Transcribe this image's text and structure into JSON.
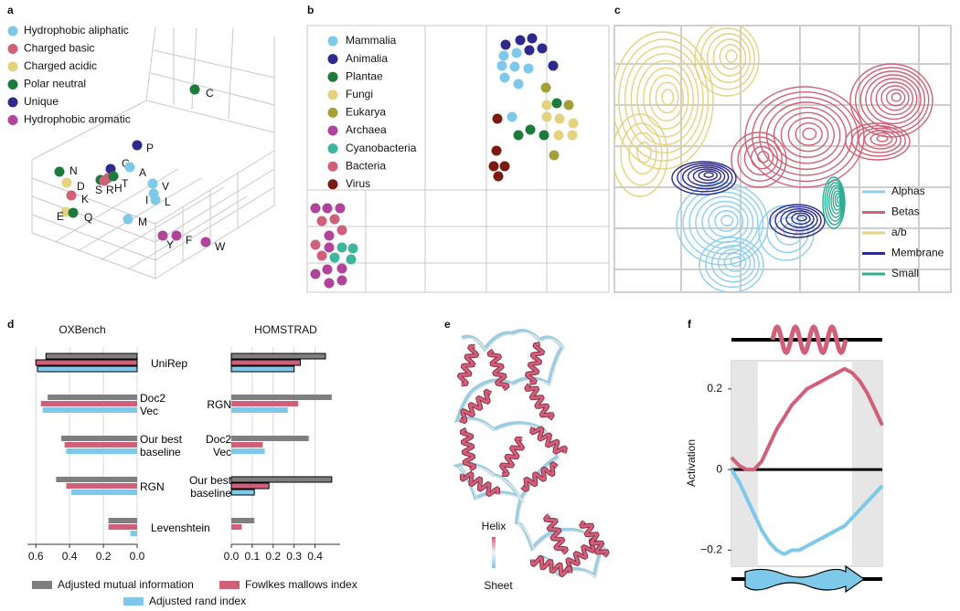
{
  "panel_labels": [
    "a",
    "b",
    "c",
    "d",
    "e",
    "f"
  ],
  "panel_a": {
    "legend": [
      {
        "name": "Hydrophobic aliphatic",
        "color": "#7ec8ea"
      },
      {
        "name": "Charged basic",
        "color": "#d0607a"
      },
      {
        "name": "Charged acidic",
        "color": "#e4d27f"
      },
      {
        "name": "Polar neutral",
        "color": "#1c7a3b"
      },
      {
        "name": "Unique",
        "color": "#2d2a8c"
      },
      {
        "name": "Hydrophobic aromatic",
        "color": "#b0449a"
      }
    ],
    "points": [
      {
        "label": "C",
        "color": "#1c7a3b"
      },
      {
        "label": "P",
        "color": "#2d2a8c"
      },
      {
        "label": "G",
        "color": "#2d2a8c"
      },
      {
        "label": "A",
        "color": "#7ec8ea"
      },
      {
        "label": "N",
        "color": "#1c7a3b"
      },
      {
        "label": "D",
        "color": "#e4d27f"
      },
      {
        "label": "K",
        "color": "#d0607a"
      },
      {
        "label": "E",
        "color": "#e4d27f"
      },
      {
        "label": "Q",
        "color": "#1c7a3b"
      },
      {
        "label": "S",
        "color": "#1c7a3b"
      },
      {
        "label": "R",
        "color": "#d0607a"
      },
      {
        "label": "H",
        "color": "#d0607a"
      },
      {
        "label": "T",
        "color": "#1c7a3b"
      },
      {
        "label": "V",
        "color": "#7ec8ea"
      },
      {
        "label": "I",
        "color": "#7ec8ea"
      },
      {
        "label": "L",
        "color": "#7ec8ea"
      },
      {
        "label": "M",
        "color": "#7ec8ea"
      },
      {
        "label": "Y",
        "color": "#b0449a"
      },
      {
        "label": "F",
        "color": "#b0449a"
      },
      {
        "label": "W",
        "color": "#b0449a"
      }
    ]
  },
  "panel_b": {
    "legend": [
      {
        "name": "Mammalia",
        "color": "#7ec8ea"
      },
      {
        "name": "Animalia",
        "color": "#2d2a8c"
      },
      {
        "name": "Plantae",
        "color": "#1c7a3b"
      },
      {
        "name": "Fungi",
        "color": "#e4d27f"
      },
      {
        "name": "Eukarya",
        "color": "#a3a03a"
      },
      {
        "name": "Archaea",
        "color": "#b0449a"
      },
      {
        "name": "Cyanobacteria",
        "color": "#3fb59e"
      },
      {
        "name": "Bacteria",
        "color": "#d0607a"
      },
      {
        "name": "Virus",
        "color": "#7a1a10"
      }
    ]
  },
  "panel_c": {
    "legend": [
      {
        "name": "Alphas",
        "color": "#8fcfee"
      },
      {
        "name": "Betas",
        "color": "#d0607a"
      },
      {
        "name": "a/b",
        "color": "#e4d27f"
      },
      {
        "name": "Membrane",
        "color": "#2d2a8c"
      },
      {
        "name": "Small",
        "color": "#2fae96"
      }
    ]
  },
  "panel_e": {
    "scale_top": "Helix",
    "scale_bottom": "Sheet"
  },
  "chart_data": [
    {
      "type": "bar",
      "orientation": "horizontal",
      "title": "OXBench",
      "categories": [
        "UniRep",
        "Doc2 Vec",
        "Our best baseline",
        "RGN",
        "Levenshtein"
      ],
      "series": [
        {
          "name": "Adjusted mutual information",
          "color": "#7f7f7f",
          "values": [
            0.54,
            0.53,
            0.45,
            0.48,
            0.17
          ]
        },
        {
          "name": "Fowlkes mallows index",
          "color": "#d0607a",
          "values": [
            0.6,
            0.57,
            0.43,
            0.42,
            0.17
          ]
        },
        {
          "name": "Adjusted rand index",
          "color": "#7ec8ea",
          "values": [
            0.59,
            0.56,
            0.42,
            0.39,
            0.04
          ]
        }
      ],
      "xlim": [
        0.65,
        0
      ],
      "xticks": [
        0.6,
        0.4,
        0.2,
        {
          "value": 0,
          "label": "0.0"
        }
      ],
      "grid": true,
      "outlined": [
        0
      ]
    },
    {
      "type": "bar",
      "orientation": "horizontal",
      "title": "HOMSTRAD",
      "categories": [
        null,
        "RGN",
        "Doc2 Vec",
        "Our best baseline",
        null
      ],
      "series": [
        {
          "color": "#7f7f7f",
          "values": [
            0.45,
            0.48,
            0.37,
            0.48,
            0.11
          ]
        },
        {
          "color": "#d0607a",
          "values": [
            0.33,
            0.32,
            0.15,
            0.18,
            0.05
          ]
        },
        {
          "color": "#7ec8ea",
          "values": [
            0.3,
            0.27,
            0.16,
            0.11,
            0
          ]
        }
      ],
      "xlim": [
        0,
        0.52
      ],
      "xticks": [
        {
          "value": 0,
          "label": "0.0"
        },
        0.1,
        0.2,
        0.3,
        0.4
      ],
      "grid": true,
      "outlined": [
        0,
        3
      ]
    },
    {
      "type": "line",
      "ylabel": "Activation",
      "x": [
        0,
        1,
        2,
        3,
        4,
        5,
        6,
        7,
        8,
        9,
        10,
        11,
        12,
        13,
        14,
        15,
        16,
        17,
        18,
        19,
        20
      ],
      "series": [
        {
          "color": "#d0607a",
          "values": [
            0.03,
            0.01,
            0,
            0,
            0.02,
            0.06,
            0.1,
            0.13,
            0.16,
            0.18,
            0.2,
            0.21,
            0.22,
            0.23,
            0.24,
            0.25,
            0.24,
            0.22,
            0.19,
            0.15,
            0.11
          ]
        },
        {
          "color": "#7ec8ea",
          "values": [
            0,
            -0.03,
            -0.07,
            -0.11,
            -0.15,
            -0.18,
            -0.2,
            -0.21,
            -0.2,
            -0.2,
            -0.19,
            -0.18,
            -0.17,
            -0.16,
            -0.15,
            -0.14,
            -0.12,
            -0.1,
            -0.08,
            -0.06,
            -0.04
          ]
        }
      ],
      "xlim": [
        0,
        20
      ],
      "ylim": [
        -0.24,
        0.27
      ],
      "yticks": [
        0.2,
        0,
        {
          "value": -0.2,
          "label": "−0.2"
        }
      ],
      "shaded_x": [
        [
          0,
          3.5
        ],
        [
          16,
          20
        ]
      ]
    }
  ]
}
